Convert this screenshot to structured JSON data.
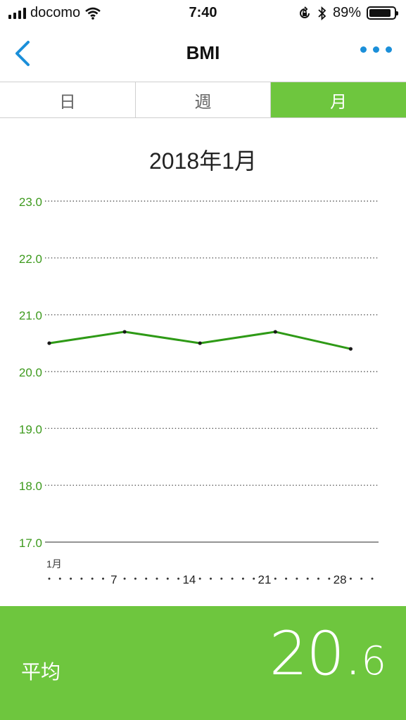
{
  "status": {
    "carrier": "docomo",
    "time": "7:40",
    "battery": "89%",
    "battery_level": 0.89
  },
  "nav": {
    "title": "BMI"
  },
  "tabs": [
    {
      "label": "日",
      "active": false
    },
    {
      "label": "週",
      "active": false
    },
    {
      "label": "月",
      "active": true
    }
  ],
  "period_label": "2018年1月",
  "chart_data": {
    "type": "line",
    "title": "",
    "xlabel": "",
    "ylabel": "",
    "ylim": [
      17.0,
      23.0
    ],
    "y_ticks": [
      "23.0",
      "22.0",
      "21.0",
      "20.0",
      "19.0",
      "18.0",
      "17.0"
    ],
    "x_range": [
      1,
      31
    ],
    "x_month_label": "1月",
    "x_tick_labels": [
      {
        "day": 7,
        "label": "7"
      },
      {
        "day": 14,
        "label": "14"
      },
      {
        "day": 21,
        "label": "21"
      },
      {
        "day": 28,
        "label": "28"
      }
    ],
    "grid": true,
    "series": [
      {
        "color": "#2e9a16",
        "points": [
          {
            "x": 1,
            "y": 20.5
          },
          {
            "x": 8,
            "y": 20.7
          },
          {
            "x": 15,
            "y": 20.5
          },
          {
            "x": 22,
            "y": 20.7
          },
          {
            "x": 29,
            "y": 20.4
          }
        ]
      }
    ]
  },
  "summary": {
    "label": "平均",
    "value_int": "20.",
    "value_dec": "6"
  },
  "colors": {
    "accent": "#6ec63e",
    "line": "#2e9a16",
    "axis_label": "#3d9a1d",
    "link": "#1b8fd9"
  }
}
